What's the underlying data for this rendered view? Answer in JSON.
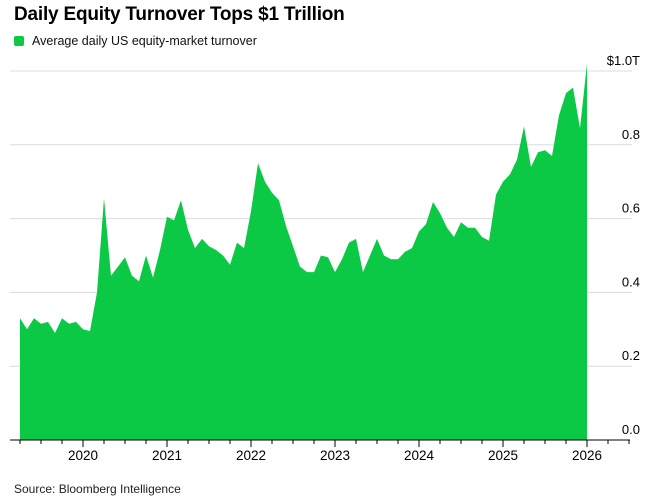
{
  "header": {
    "title": "Daily Equity Turnover Tops $1 Trillion"
  },
  "legend": {
    "label": "Average daily US equity-market turnover",
    "swatch_color": "#0bc944"
  },
  "footer": {
    "source": "Source: Bloomberg Intelligence"
  },
  "chart_data": {
    "type": "area",
    "title": "Daily Equity Turnover Tops $1 Trillion",
    "series_name": "Average daily US equity-market turnover",
    "unit": "USD trillions per day",
    "frequency": "monthly",
    "x_start": "2019-04",
    "x_end": "2026-01",
    "x": [
      "2019-04",
      "2019-05",
      "2019-06",
      "2019-07",
      "2019-08",
      "2019-09",
      "2019-10",
      "2019-11",
      "2019-12",
      "2020-01",
      "2020-02",
      "2020-03",
      "2020-04",
      "2020-05",
      "2020-06",
      "2020-07",
      "2020-08",
      "2020-09",
      "2020-10",
      "2020-11",
      "2020-12",
      "2021-01",
      "2021-02",
      "2021-03",
      "2021-04",
      "2021-05",
      "2021-06",
      "2021-07",
      "2021-08",
      "2021-09",
      "2021-10",
      "2021-11",
      "2021-12",
      "2022-01",
      "2022-02",
      "2022-03",
      "2022-04",
      "2022-05",
      "2022-06",
      "2022-07",
      "2022-08",
      "2022-09",
      "2022-10",
      "2022-11",
      "2022-12",
      "2023-01",
      "2023-02",
      "2023-03",
      "2023-04",
      "2023-05",
      "2023-06",
      "2023-07",
      "2023-08",
      "2023-09",
      "2023-10",
      "2023-11",
      "2023-12",
      "2024-01",
      "2024-02",
      "2024-03",
      "2024-04",
      "2024-05",
      "2024-06",
      "2024-07",
      "2024-08",
      "2024-09",
      "2024-10",
      "2024-11",
      "2024-12",
      "2025-01",
      "2025-02",
      "2025-03",
      "2025-04",
      "2025-05",
      "2025-06",
      "2025-07",
      "2025-08",
      "2025-09",
      "2025-10",
      "2025-11",
      "2025-12",
      "2026-01"
    ],
    "values": [
      0.33,
      0.3,
      0.33,
      0.315,
      0.32,
      0.29,
      0.33,
      0.315,
      0.32,
      0.3,
      0.295,
      0.4,
      0.655,
      0.445,
      0.47,
      0.495,
      0.445,
      0.43,
      0.5,
      0.44,
      0.515,
      0.605,
      0.595,
      0.65,
      0.57,
      0.52,
      0.545,
      0.525,
      0.515,
      0.5,
      0.475,
      0.535,
      0.52,
      0.62,
      0.75,
      0.7,
      0.67,
      0.65,
      0.58,
      0.525,
      0.47,
      0.455,
      0.455,
      0.5,
      0.495,
      0.455,
      0.49,
      0.535,
      0.545,
      0.455,
      0.5,
      0.545,
      0.5,
      0.49,
      0.49,
      0.51,
      0.52,
      0.565,
      0.585,
      0.645,
      0.615,
      0.575,
      0.55,
      0.59,
      0.575,
      0.575,
      0.55,
      0.54,
      0.665,
      0.7,
      0.72,
      0.76,
      0.85,
      0.74,
      0.78,
      0.785,
      0.77,
      0.88,
      0.94,
      0.955,
      0.845,
      1.02
    ],
    "x_tick_labels": [
      "2020",
      "2021",
      "2022",
      "2023",
      "2024",
      "2025",
      "2026"
    ],
    "y_tick_labels": [
      "0.0",
      "0.2",
      "0.4",
      "0.6",
      "0.8",
      "$1.0T"
    ],
    "y_tick_values": [
      0,
      0.2,
      0.4,
      0.6,
      0.8,
      1.0
    ],
    "ylim": [
      0,
      1.05
    ],
    "xlabel": "",
    "ylabel": "",
    "y_axis_side": "right",
    "grid": "horizontal",
    "minor_x_ticks": "quarterly",
    "legend_position": "top-left",
    "area_color": "#0bc944",
    "grid_color": "#dcdcdc",
    "axis_color": "#000000",
    "label_color": "#000000"
  }
}
